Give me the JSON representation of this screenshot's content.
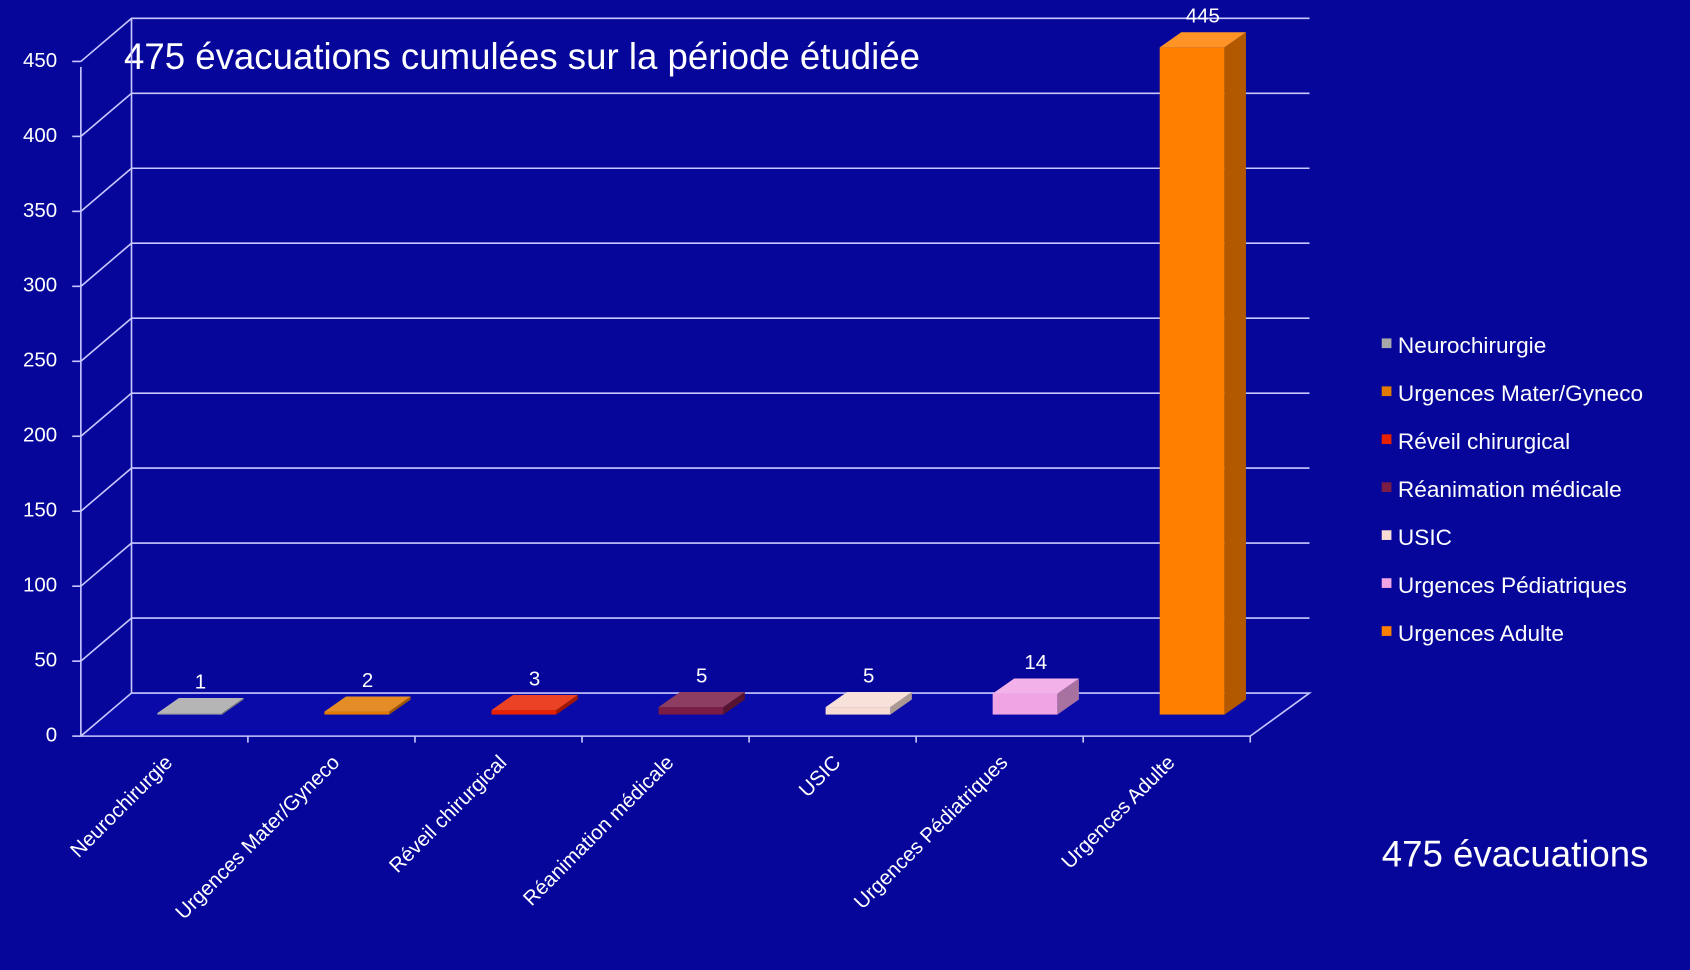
{
  "chart_data": {
    "type": "bar3d",
    "annotations": [
      "475 évacuations cumulées sur la période étudiée",
      "475 évacuations"
    ],
    "categories": [
      "Neurochirurgie",
      "Urgences Mater/Gyneco",
      "Réveil chirurgical",
      "Réanimation médicale",
      "USIC",
      "Urgences Pédiatriques",
      "Urgences Adulte"
    ],
    "values": [
      1,
      2,
      3,
      5,
      5,
      14,
      445
    ],
    "colors": [
      "#a8a8a8",
      "#e07a00",
      "#e82200",
      "#7a1c44",
      "#f6dcd2",
      "#f0a4e4",
      "#ff8000"
    ],
    "ylim": [
      0,
      450
    ],
    "yticks": [
      0,
      50,
      100,
      150,
      200,
      250,
      300,
      350,
      400,
      450
    ],
    "grid": true,
    "legend": "right"
  }
}
